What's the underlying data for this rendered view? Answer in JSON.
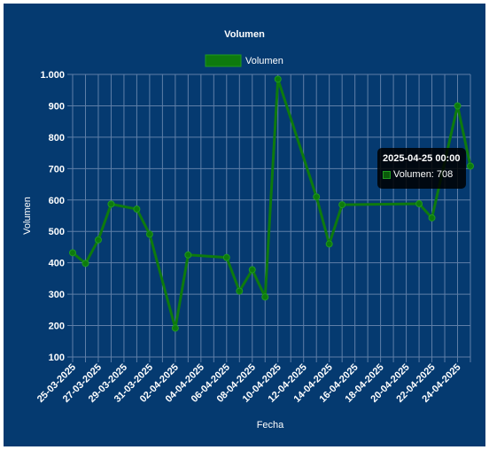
{
  "chart_data": {
    "type": "line",
    "title": "Volumen",
    "xlabel": "Fecha",
    "ylabel": "Volumen",
    "ylim": [
      100,
      1000
    ],
    "y_ticks": [
      "1.000",
      "900",
      "800",
      "700",
      "600",
      "500",
      "400",
      "300",
      "200",
      "100"
    ],
    "y_tick_values": [
      1000,
      900,
      800,
      700,
      600,
      500,
      400,
      300,
      200,
      100
    ],
    "legend": {
      "position": "top",
      "label": "Volumen"
    },
    "grid": true,
    "colors": {
      "background": "#053a70",
      "line": "#0e7a0e",
      "grid": "#5f7fa8",
      "text": "#ffffff"
    },
    "categories": [
      "25-03-2025",
      "26-03-2025",
      "27-03-2025",
      "28-03-2025",
      "29-03-2025",
      "30-03-2025",
      "31-03-2025",
      "01-04-2025",
      "02-04-2025",
      "03-04-2025",
      "04-04-2025",
      "05-04-2025",
      "06-04-2025",
      "07-04-2025",
      "08-04-2025",
      "09-04-2025",
      "10-04-2025",
      "11-04-2025",
      "12-04-2025",
      "13-04-2025",
      "14-04-2025",
      "15-04-2025",
      "16-04-2025",
      "17-04-2025",
      "18-04-2025",
      "19-04-2025",
      "20-04-2025",
      "21-04-2025",
      "22-04-2025",
      "23-04-2025",
      "24-04-2025",
      "25-04-2025"
    ],
    "tick_labels_shown": [
      "25-03-2025",
      "27-03-2025",
      "29-03-2025",
      "31-03-2025",
      "02-04-2025",
      "04-04-2025",
      "06-04-2025",
      "08-04-2025",
      "10-04-2025",
      "12-04-2025",
      "14-04-2025",
      "16-04-2025",
      "18-04-2025",
      "20-04-2025",
      "22-04-2025",
      "24-04-2025"
    ],
    "series": [
      {
        "name": "Volumen",
        "points": [
          {
            "x": "25-03-2025",
            "y": 432
          },
          {
            "x": "26-03-2025",
            "y": 398
          },
          {
            "x": "27-03-2025",
            "y": 473
          },
          {
            "x": "28-03-2025",
            "y": 587
          },
          {
            "x": "30-03-2025",
            "y": 571
          },
          {
            "x": "31-03-2025",
            "y": 491
          },
          {
            "x": "02-04-2025",
            "y": 192
          },
          {
            "x": "03-04-2025",
            "y": 425
          },
          {
            "x": "06-04-2025",
            "y": 417
          },
          {
            "x": "07-04-2025",
            "y": 310
          },
          {
            "x": "08-04-2025",
            "y": 378
          },
          {
            "x": "09-04-2025",
            "y": 291
          },
          {
            "x": "10-04-2025",
            "y": 985
          },
          {
            "x": "13-04-2025",
            "y": 610
          },
          {
            "x": "14-04-2025",
            "y": 460
          },
          {
            "x": "15-04-2025",
            "y": 585
          },
          {
            "x": "21-04-2025",
            "y": 588
          },
          {
            "x": "22-04-2025",
            "y": 543
          },
          {
            "x": "24-04-2025",
            "y": 900
          },
          {
            "x": "25-04-2025",
            "y": 708
          }
        ]
      }
    ],
    "tooltip": {
      "title": "2025-04-25 00:00",
      "label": "Volumen: 708"
    }
  }
}
